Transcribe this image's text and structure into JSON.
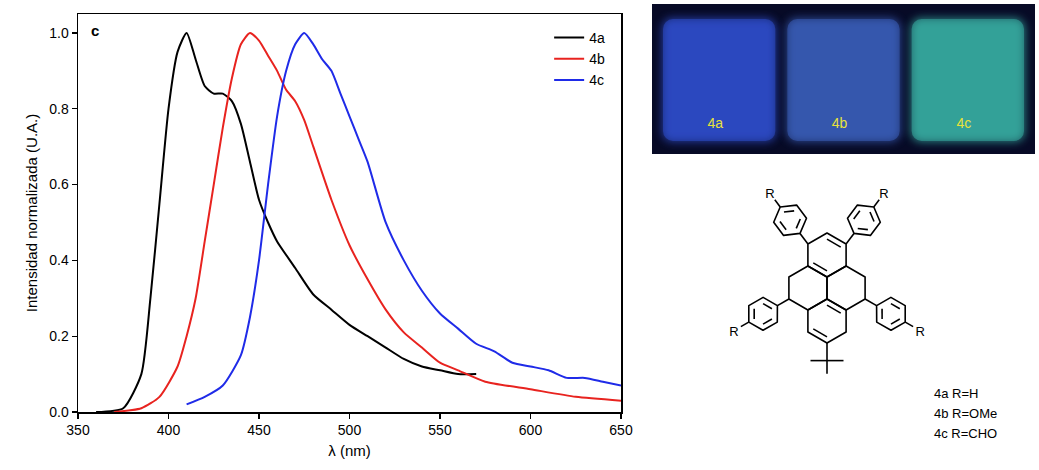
{
  "chart_data": {
    "type": "line",
    "panel_label": "c",
    "x_label": "λ (nm)",
    "y_label": "Intensidad normalizada (U.A.)",
    "xlim": [
      350,
      650
    ],
    "xticks": [
      350,
      400,
      450,
      500,
      550,
      600,
      650
    ],
    "ylim": [
      0,
      1.05
    ],
    "yticks": [
      {
        "value": 0,
        "label": "0.0"
      },
      0.2,
      0.4,
      0.6,
      0.8,
      {
        "value": 1,
        "label": "1.0"
      }
    ],
    "grid": false,
    "legend": "top right",
    "series": [
      {
        "name": "4a",
        "color": "#000000",
        "x": [
          360,
          375,
          385,
          390,
          395,
          400,
          405,
          410,
          415,
          420,
          425,
          430,
          435,
          440,
          445,
          450,
          455,
          460,
          470,
          480,
          490,
          500,
          510,
          520,
          530,
          540,
          550,
          560,
          570
        ],
        "values": [
          0,
          0.01,
          0.1,
          0.3,
          0.55,
          0.8,
          0.95,
          1.0,
          0.93,
          0.86,
          0.84,
          0.84,
          0.82,
          0.76,
          0.66,
          0.56,
          0.5,
          0.45,
          0.38,
          0.31,
          0.27,
          0.23,
          0.2,
          0.17,
          0.14,
          0.12,
          0.11,
          0.1,
          0.1
        ]
      },
      {
        "name": "4b",
        "color": "#e8231f",
        "x": [
          370,
          385,
          395,
          405,
          410,
          415,
          420,
          425,
          430,
          435,
          440,
          445,
          450,
          455,
          460,
          465,
          470,
          475,
          480,
          490,
          500,
          510,
          520,
          530,
          540,
          550,
          560,
          575,
          600,
          625,
          650
        ],
        "values": [
          0,
          0.01,
          0.04,
          0.12,
          0.2,
          0.3,
          0.45,
          0.6,
          0.75,
          0.88,
          0.97,
          1.0,
          0.98,
          0.94,
          0.9,
          0.85,
          0.82,
          0.77,
          0.7,
          0.56,
          0.44,
          0.35,
          0.27,
          0.21,
          0.17,
          0.13,
          0.11,
          0.08,
          0.06,
          0.04,
          0.03
        ]
      },
      {
        "name": "4c",
        "color": "#1f2be8",
        "x": [
          410,
          420,
          430,
          440,
          445,
          450,
          455,
          460,
          465,
          470,
          475,
          480,
          485,
          490,
          495,
          500,
          505,
          510,
          520,
          530,
          540,
          550,
          560,
          570,
          580,
          590,
          600,
          610,
          620,
          630,
          640,
          650
        ],
        "values": [
          0.02,
          0.04,
          0.07,
          0.15,
          0.25,
          0.4,
          0.6,
          0.78,
          0.9,
          0.97,
          1.0,
          0.97,
          0.93,
          0.9,
          0.84,
          0.78,
          0.72,
          0.66,
          0.5,
          0.4,
          0.32,
          0.26,
          0.22,
          0.18,
          0.16,
          0.13,
          0.12,
          0.11,
          0.09,
          0.09,
          0.08,
          0.07
        ]
      }
    ]
  },
  "photo": {
    "samples": [
      {
        "label": "4a",
        "color": "#3a62ff"
      },
      {
        "label": "4b",
        "color": "#4a78e6"
      },
      {
        "label": "4c",
        "color": "#46e0c8"
      }
    ]
  },
  "structure": {
    "substituent": "R",
    "compounds": [
      "4a R=H",
      "4b R=OMe",
      "4c R=CHO"
    ]
  }
}
